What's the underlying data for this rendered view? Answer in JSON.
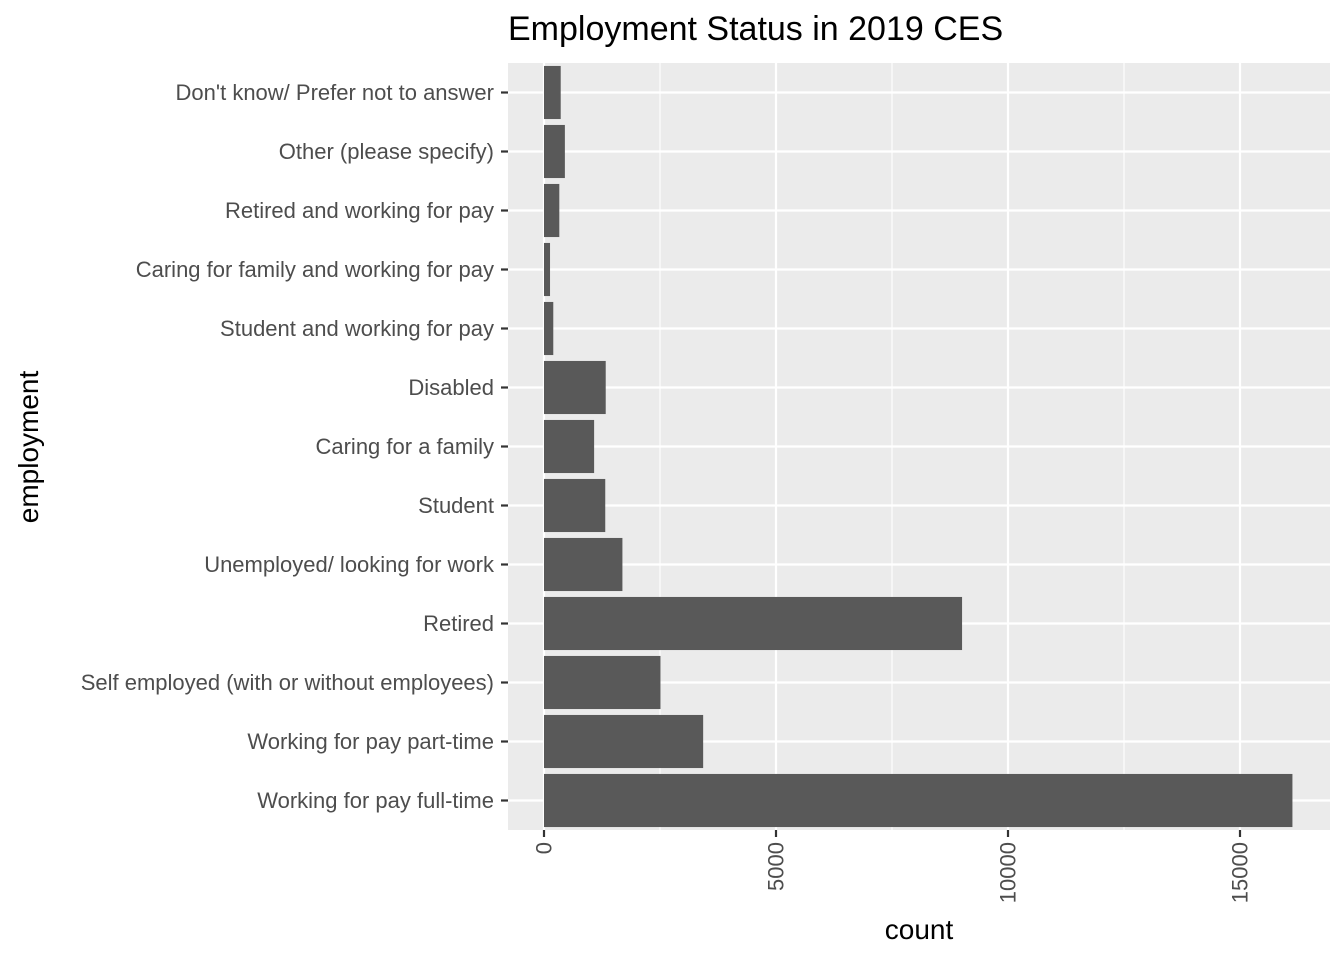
{
  "chart_data": {
    "type": "bar",
    "orientation": "horizontal",
    "title": "Employment Status in 2019 CES",
    "xlabel": "count",
    "ylabel": "employment",
    "xlim": [
      0,
      17000
    ],
    "xticks": [
      0,
      5000,
      10000,
      15000
    ],
    "xtick_labels": [
      "0",
      "5000",
      "10000",
      "15000"
    ],
    "categories": [
      "Working for pay full-time",
      "Working for pay part-time",
      "Self employed (with or without employees)",
      "Retired",
      "Unemployed/ looking for work",
      "Student",
      "Caring for a family",
      "Disabled",
      "Student and working for pay",
      "Caring for family and working for pay",
      "Retired and working for pay",
      "Other (please specify)",
      "Don't know/ Prefer not to answer"
    ],
    "values": [
      16130,
      3430,
      2510,
      9010,
      1690,
      1320,
      1080,
      1330,
      200,
      130,
      330,
      450,
      360
    ],
    "bar_color": "#595959",
    "panel_background": "#ebebeb",
    "grid_color": "#ffffff",
    "grid": true
  }
}
